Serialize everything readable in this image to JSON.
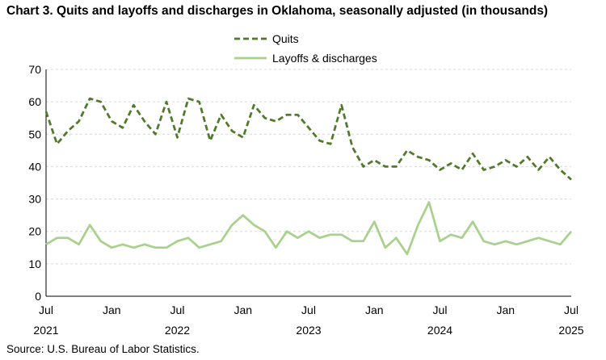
{
  "title": "Chart 3. Quits and layoffs and discharges in Oklahoma, seasonally adjusted (in thousands)",
  "source": "Source: U.S. Bureau of Labor Statistics.",
  "chart_data": {
    "type": "line",
    "title": "Chart 3. Quits and layoffs and discharges in Oklahoma, seasonally adjusted (in thousands)",
    "xlabel": "",
    "ylabel": "",
    "ylim": [
      0,
      70
    ],
    "yticks": [
      0,
      10,
      20,
      30,
      40,
      50,
      60,
      70
    ],
    "grid": true,
    "legend": "top-center",
    "x_start": "2021-07",
    "x_end": "2025-07",
    "x_tick_labels": [
      {
        "month": "Jul",
        "year": "2021",
        "index": 0
      },
      {
        "month": "Jan",
        "year": "",
        "index": 6
      },
      {
        "month": "Jul",
        "year": "2022",
        "index": 12
      },
      {
        "month": "Jan",
        "year": "",
        "index": 18
      },
      {
        "month": "Jul",
        "year": "2023",
        "index": 24
      },
      {
        "month": "Jan",
        "year": "",
        "index": 30
      },
      {
        "month": "Jul",
        "year": "2024",
        "index": 36
      },
      {
        "month": "Jan",
        "year": "",
        "index": 42
      },
      {
        "month": "Jul",
        "year": "2025",
        "index": 48
      }
    ],
    "series": [
      {
        "name": "Quits",
        "color": "#4f7a2a",
        "style": "dashed",
        "values": [
          57,
          47,
          51,
          54,
          61,
          60,
          54,
          52,
          59,
          54,
          50,
          60,
          49,
          61,
          60,
          48,
          56,
          51,
          49,
          59,
          55,
          54,
          56,
          56,
          52,
          48,
          47,
          59,
          46,
          40,
          42,
          40,
          40,
          45,
          43,
          42,
          39,
          41,
          39,
          44,
          39,
          40,
          42,
          40,
          43,
          39,
          43,
          39,
          36
        ]
      },
      {
        "name": "Layoffs & discharges",
        "color": "#a9d18e",
        "style": "solid",
        "values": [
          16,
          18,
          18,
          16,
          22,
          17,
          15,
          16,
          15,
          16,
          15,
          15,
          17,
          18,
          15,
          16,
          17,
          22,
          25,
          22,
          20,
          15,
          20,
          18,
          20,
          18,
          19,
          19,
          17,
          17,
          23,
          15,
          18,
          13,
          22,
          29,
          17,
          19,
          18,
          23,
          17,
          16,
          17,
          16,
          17,
          18,
          17,
          16,
          20
        ]
      }
    ]
  }
}
